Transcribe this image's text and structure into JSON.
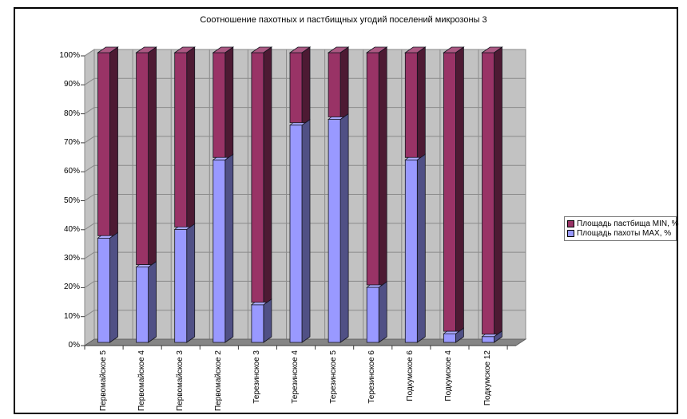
{
  "window": {
    "background": "#FFFFFF",
    "border_color": "#000000"
  },
  "chart_data": {
    "type": "bar",
    "stacked": true,
    "title": "Соотношение пахотных и пастбищных угодий поселений микрозоны 3",
    "categories": [
      "Первомайское 5",
      "Первомайское 4",
      "Первомайское 3",
      "Первомайское 2",
      "Терезинское 3",
      "Терезинское 4",
      "Терезинское 5",
      "Терезинское 6",
      "Подкумское 6",
      "Подкумское 4",
      "Подкумское 12"
    ],
    "series": [
      {
        "name": "Площадь пастбища MIN, %",
        "color": "#993366",
        "values": [
          64,
          74,
          61,
          37,
          87,
          25,
          23,
          81,
          37,
          97,
          98
        ]
      },
      {
        "name": "Площадь пахоты MAX, %",
        "color": "#9999FF",
        "values": [
          36,
          26,
          39,
          63,
          13,
          75,
          77,
          19,
          63,
          3,
          2
        ]
      }
    ],
    "y_ticks": [
      "0%",
      "10%",
      "20%",
      "30%",
      "40%",
      "50%",
      "60%",
      "70%",
      "80%",
      "90%",
      "100%"
    ],
    "ylim": [
      0,
      100
    ],
    "xlabel": "",
    "ylabel": "",
    "grid": true,
    "legend_position": "right",
    "wall_color": "#C2C2C2",
    "floor_color": "#858585",
    "gridline_color": "#8A8A8A"
  }
}
